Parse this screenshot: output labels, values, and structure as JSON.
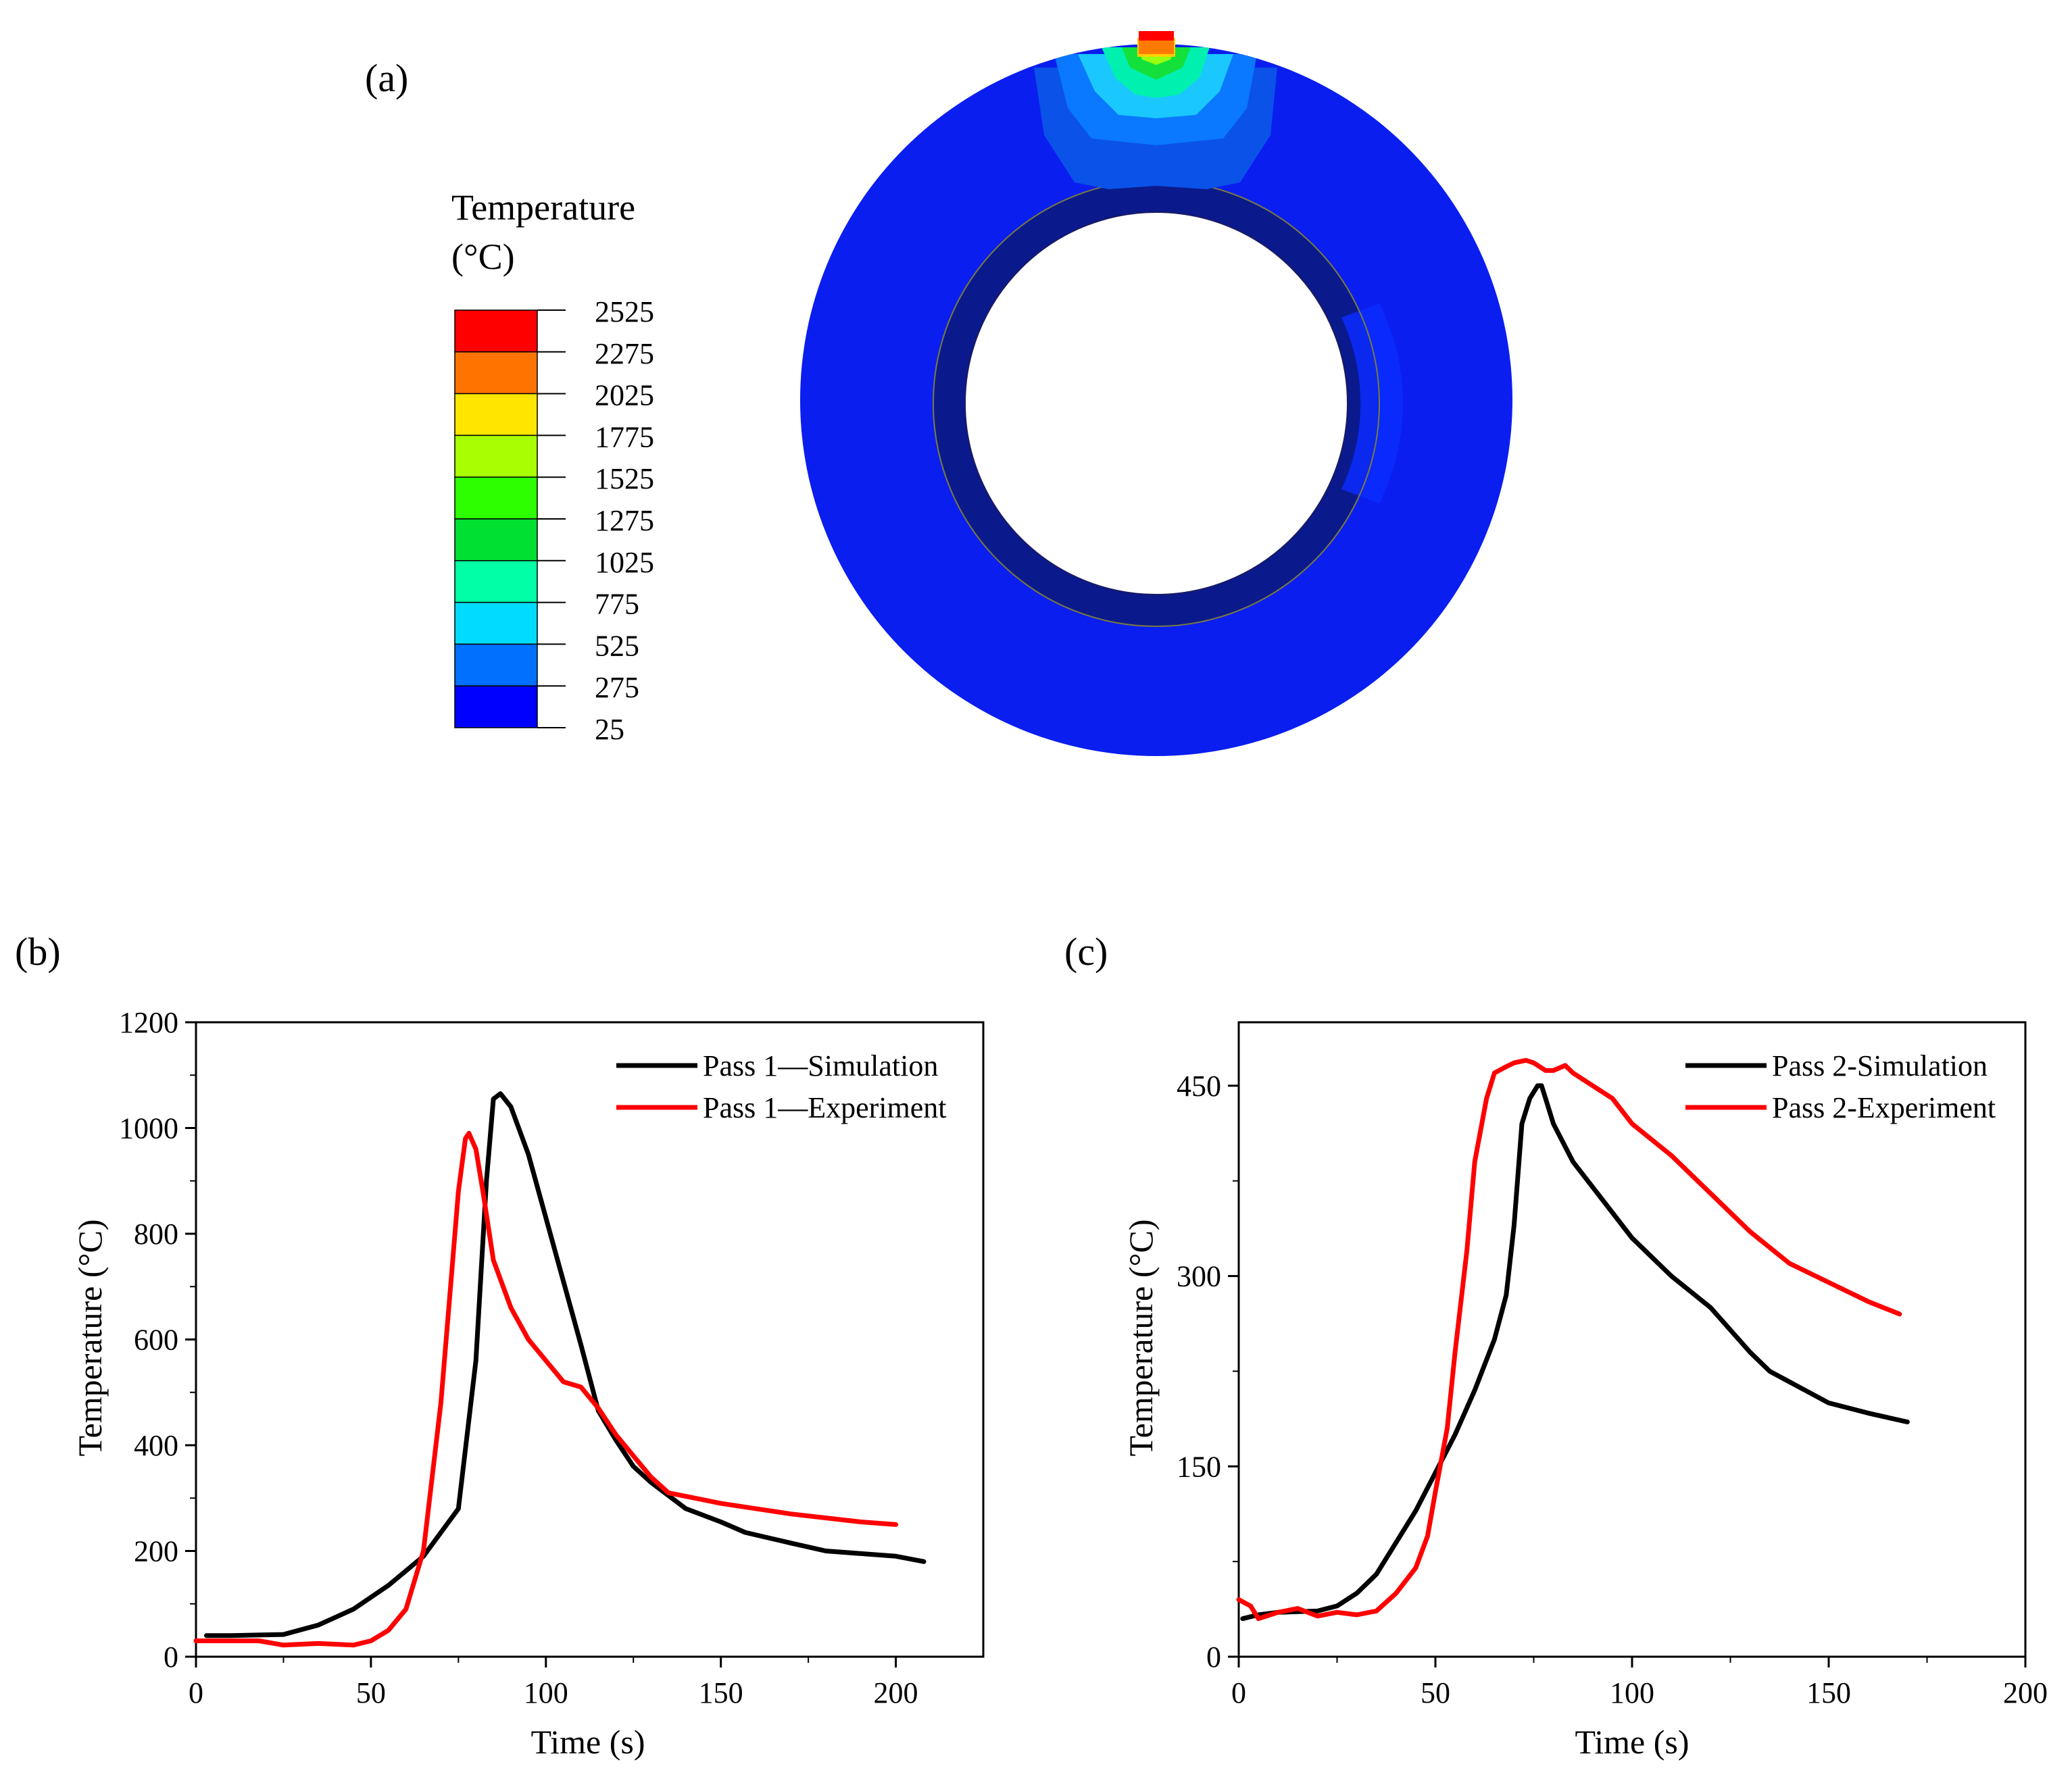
{
  "panel_a": {
    "label": "(a)",
    "legend_title_1": "Temperature",
    "legend_title_2": "(°C)",
    "legend_values": [
      "2525",
      "2275",
      "2025",
      "1775",
      "1525",
      "1275",
      "1025",
      "775",
      "525",
      "275",
      "25"
    ],
    "legend_colors": [
      "#ff0000",
      "#ff7400",
      "#ffe600",
      "#a8ff00",
      "#2dff00",
      "#00e030",
      "#00ffa6",
      "#00dcff",
      "#0070ff",
      "#0000ff"
    ],
    "ring_base_color": "#0a1ef0",
    "inner_band_color": "#0a1a8c",
    "inner_right_color": "#0a2cff"
  },
  "chart_data": [
    {
      "type": "line",
      "panel_label": "(b)",
      "xlabel": "Time (s)",
      "ylabel": "Temperature (°C)",
      "xlim": [
        0,
        225
      ],
      "ylim": [
        0,
        1200
      ],
      "xticks": [
        0,
        50,
        100,
        150,
        200
      ],
      "yticks": [
        0,
        200,
        400,
        600,
        800,
        1000,
        1200
      ],
      "legend_position": "top-right",
      "series": [
        {
          "name": "Pass 1—Simulation",
          "color": "#000000",
          "x": [
            3,
            10,
            25,
            35,
            45,
            55,
            65,
            75,
            80,
            83,
            85,
            87,
            90,
            95,
            100,
            105,
            110,
            115,
            120,
            125,
            130,
            140,
            150,
            157,
            170,
            180,
            190,
            200,
            208
          ],
          "y": [
            40,
            40,
            42,
            60,
            90,
            135,
            190,
            280,
            560,
            900,
            1055,
            1065,
            1040,
            950,
            830,
            710,
            590,
            465,
            410,
            360,
            330,
            280,
            255,
            235,
            215,
            200,
            195,
            190,
            180
          ]
        },
        {
          "name": "Pass 1—Experiment",
          "color": "#ff0000",
          "x": [
            0,
            10,
            18,
            25,
            35,
            45,
            50,
            55,
            60,
            65,
            70,
            73,
            75,
            77,
            78,
            80,
            82,
            85,
            90,
            95,
            100,
            105,
            110,
            115,
            120,
            125,
            130,
            135,
            150,
            170,
            190,
            200
          ],
          "y": [
            30,
            30,
            30,
            22,
            25,
            22,
            30,
            50,
            90,
            200,
            480,
            720,
            880,
            980,
            990,
            960,
            880,
            750,
            660,
            600,
            560,
            520,
            510,
            470,
            420,
            380,
            340,
            310,
            290,
            270,
            255,
            250
          ]
        }
      ]
    },
    {
      "type": "line",
      "panel_label": "(c)",
      "xlabel": "Time (s)",
      "ylabel": "Temperature (°C)",
      "xlim": [
        0,
        200
      ],
      "ylim": [
        0,
        500
      ],
      "xticks": [
        0,
        50,
        100,
        150,
        200
      ],
      "yticks": [
        0,
        150,
        300,
        450
      ],
      "legend_position": "top-right",
      "series": [
        {
          "name": "Pass 2-Simulation",
          "color": "#000000",
          "x": [
            1,
            5,
            10,
            20,
            25,
            30,
            35,
            40,
            45,
            50,
            55,
            60,
            65,
            68,
            70,
            72,
            74,
            76,
            77,
            78,
            80,
            85,
            90,
            100,
            110,
            120,
            130,
            135,
            150,
            160,
            170
          ],
          "y": [
            30,
            33,
            35,
            36,
            40,
            50,
            65,
            90,
            115,
            145,
            175,
            210,
            250,
            285,
            340,
            420,
            440,
            450,
            450,
            440,
            420,
            390,
            370,
            330,
            300,
            275,
            240,
            225,
            200,
            192,
            185
          ]
        },
        {
          "name": "Pass 2-Experiment",
          "color": "#ff0000",
          "x": [
            0,
            3,
            5,
            10,
            15,
            20,
            25,
            30,
            35,
            40,
            45,
            48,
            50,
            53,
            55,
            58,
            60,
            63,
            65,
            68,
            70,
            73,
            75,
            78,
            80,
            83,
            85,
            90,
            95,
            100,
            110,
            120,
            130,
            140,
            150,
            160,
            168
          ],
          "y": [
            45,
            40,
            30,
            35,
            38,
            32,
            35,
            33,
            36,
            50,
            70,
            95,
            130,
            180,
            240,
            320,
            390,
            440,
            460,
            465,
            468,
            470,
            468,
            462,
            462,
            466,
            460,
            450,
            440,
            420,
            395,
            365,
            335,
            310,
            295,
            280,
            270
          ]
        }
      ]
    }
  ]
}
